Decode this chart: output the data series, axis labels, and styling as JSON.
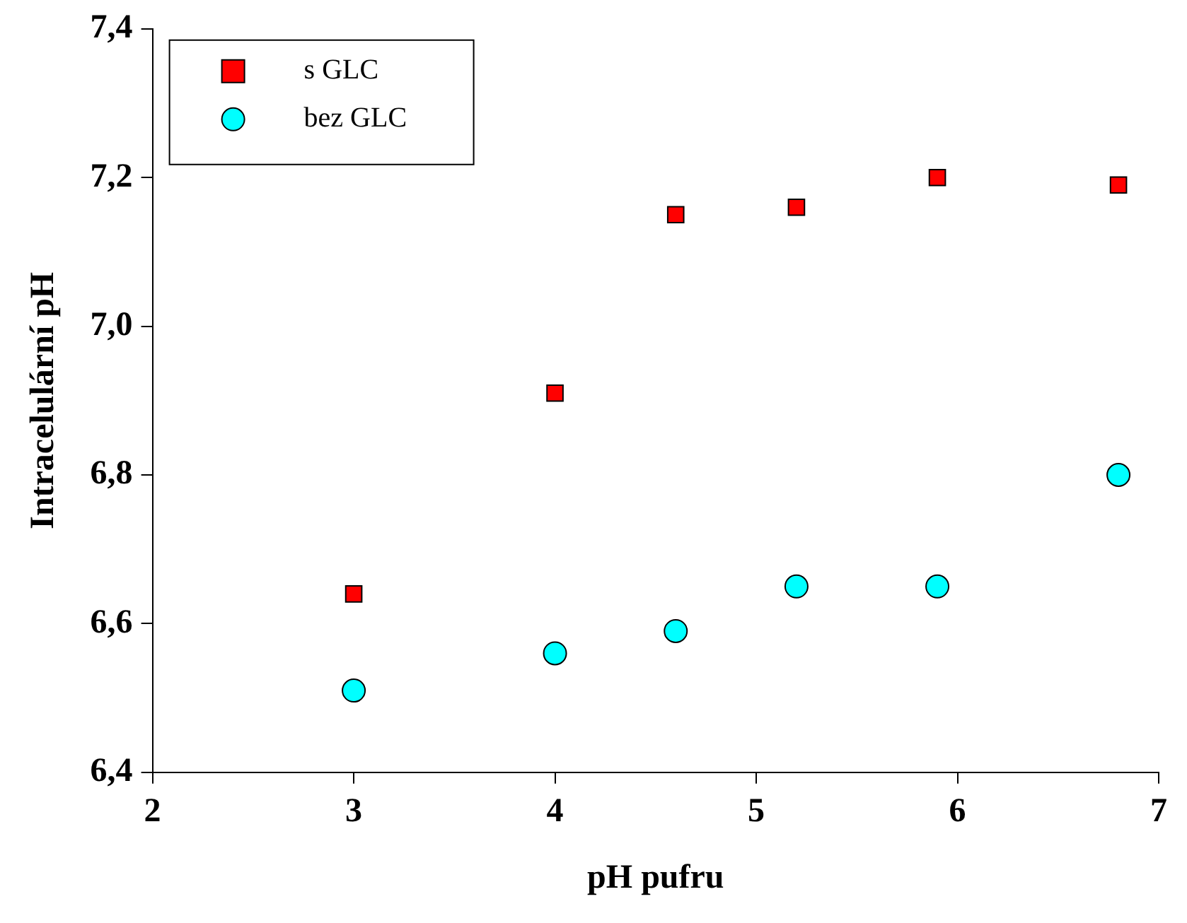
{
  "chart_data": {
    "type": "scatter",
    "xlabel": "pH pufru",
    "ylabel": "Intracelulární pH",
    "x": [
      3,
      4,
      4.6,
      5.2,
      5.9,
      6.8
    ],
    "series": [
      {
        "name": "s GLC",
        "color": "#ff0000",
        "marker": "square",
        "values": [
          6.64,
          6.91,
          7.15,
          7.16,
          7.2,
          7.19
        ]
      },
      {
        "name": "bez GLC",
        "color": "#00ffff",
        "marker": "circle",
        "values": [
          6.51,
          6.56,
          6.59,
          6.65,
          6.65,
          6.8
        ]
      }
    ],
    "xlim": [
      2,
      7
    ],
    "xticks": [
      2,
      3,
      4,
      5,
      6,
      7
    ],
    "ylim": [
      6.4,
      7.4
    ],
    "yticks": [
      {
        "value": 6.4,
        "label": "6,4"
      },
      {
        "value": 6.6,
        "label": "6,6"
      },
      {
        "value": 6.8,
        "label": "6,8"
      },
      {
        "value": 7.0,
        "label": "7,0"
      },
      {
        "value": 7.2,
        "label": "7,2"
      },
      {
        "value": 7.4,
        "label": "7,4"
      }
    ],
    "grid": false,
    "legend": "top left"
  }
}
